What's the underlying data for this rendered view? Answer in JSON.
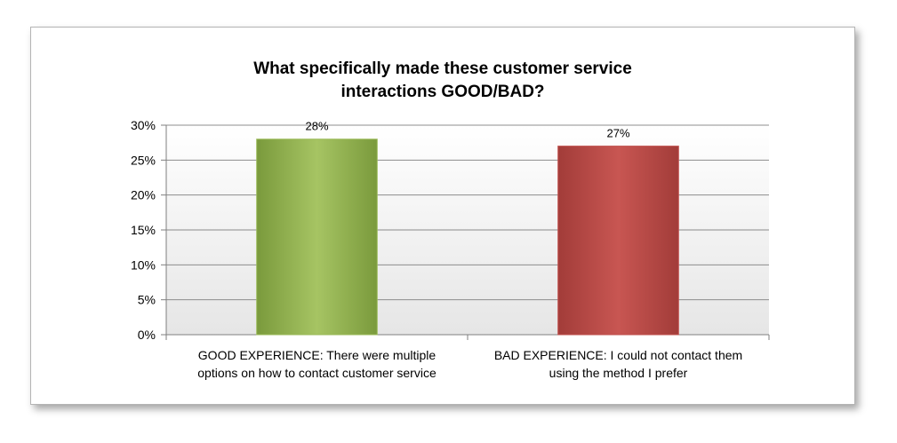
{
  "chart_data": {
    "type": "bar",
    "title_lines": [
      "What specifically made these customer service",
      "interactions GOOD/BAD?"
    ],
    "categories": [
      [
        "GOOD EXPERIENCE: There were multiple",
        "options on how to contact customer service"
      ],
      [
        "BAD EXPERIENCE: I could not contact them",
        "using the method I prefer"
      ]
    ],
    "values": [
      0.28,
      0.27
    ],
    "data_labels": [
      "28%",
      "27%"
    ],
    "bar_colors": [
      "#9bbb59",
      "#c0504d"
    ],
    "ylim": [
      0,
      0.3
    ],
    "yticks": [
      0,
      0.05,
      0.1,
      0.15,
      0.2,
      0.25,
      0.3
    ],
    "ytick_labels": [
      "0%",
      "5%",
      "10%",
      "15%",
      "20%",
      "25%",
      "30%"
    ],
    "grid": true,
    "xlabel": "",
    "ylabel": ""
  }
}
